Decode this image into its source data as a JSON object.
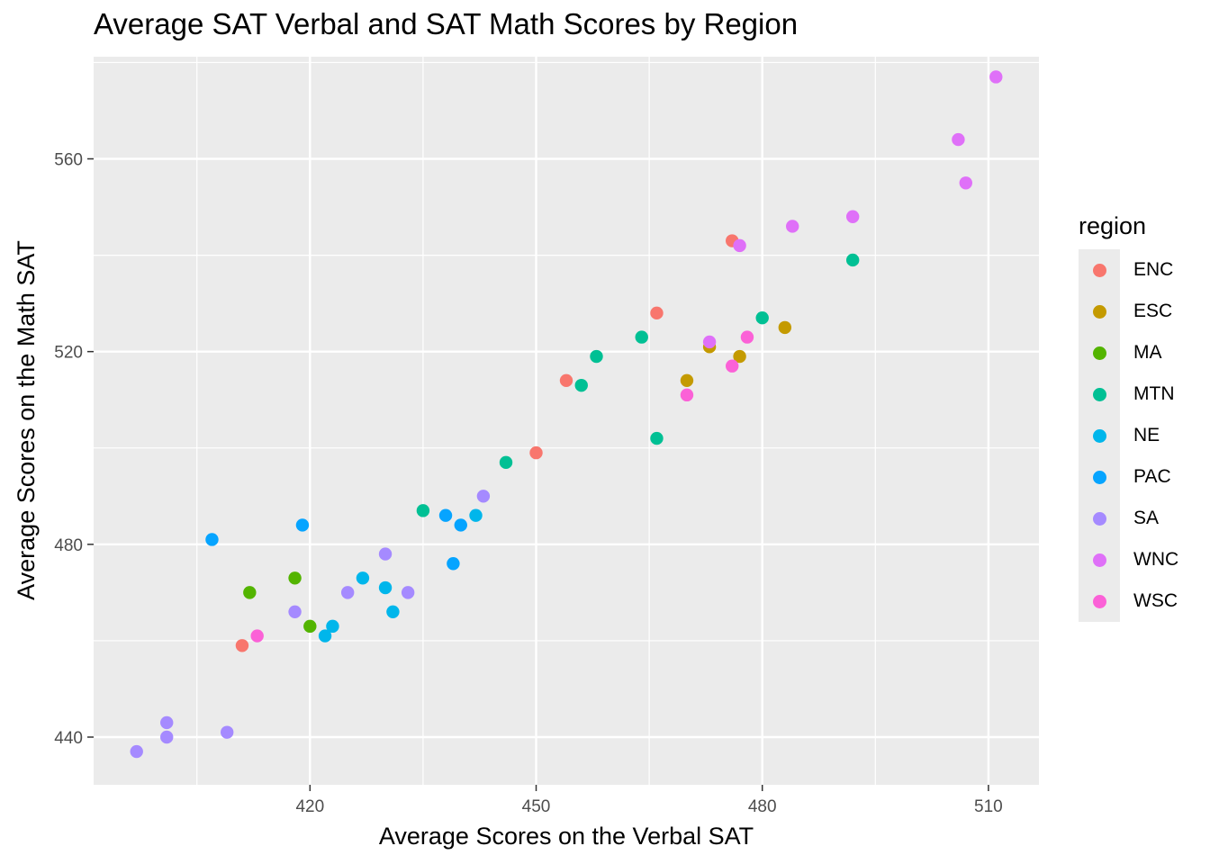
{
  "chart_data": {
    "type": "scatter",
    "title": "Average SAT Verbal and SAT Math Scores by Region",
    "xlabel": "Average Scores on the Verbal SAT",
    "ylabel": "Average Scores on the Math SAT",
    "xlim": [
      391.3,
      516.7
    ],
    "ylim": [
      430.1,
      581.2
    ],
    "xticks": [
      420,
      450,
      480,
      510
    ],
    "yticks": [
      440,
      480,
      520,
      560
    ],
    "grid": true,
    "legend": {
      "title": "region",
      "position": "right"
    },
    "series": [
      {
        "name": "ENC",
        "color": "#F8766D",
        "points": [
          [
            411,
            459
          ],
          [
            450,
            499
          ],
          [
            454,
            514
          ],
          [
            466,
            528
          ],
          [
            476,
            543
          ]
        ]
      },
      {
        "name": "ESC",
        "color": "#C49A00",
        "points": [
          [
            470,
            514
          ],
          [
            473,
            521
          ],
          [
            477,
            519
          ],
          [
            483,
            525
          ]
        ]
      },
      {
        "name": "MA",
        "color": "#53B400",
        "points": [
          [
            412,
            470
          ],
          [
            418,
            473
          ],
          [
            420,
            463
          ]
        ]
      },
      {
        "name": "MTN",
        "color": "#00C094",
        "points": [
          [
            435,
            487
          ],
          [
            446,
            497
          ],
          [
            456,
            513
          ],
          [
            458,
            519
          ],
          [
            464,
            523
          ],
          [
            466,
            502
          ],
          [
            480,
            527
          ],
          [
            492,
            539
          ]
        ]
      },
      {
        "name": "NE",
        "color": "#00B6EB",
        "points": [
          [
            422,
            461
          ],
          [
            423,
            463
          ],
          [
            427,
            473
          ],
          [
            430,
            471
          ],
          [
            431,
            466
          ],
          [
            442,
            486
          ]
        ]
      },
      {
        "name": "PAC",
        "color": "#06A4FF",
        "points": [
          [
            407,
            481
          ],
          [
            419,
            484
          ],
          [
            438,
            486
          ],
          [
            439,
            476
          ],
          [
            440,
            484
          ]
        ]
      },
      {
        "name": "SA",
        "color": "#A58AFF",
        "points": [
          [
            397,
            437
          ],
          [
            401,
            440
          ],
          [
            401,
            443
          ],
          [
            409,
            441
          ],
          [
            418,
            466
          ],
          [
            425,
            470
          ],
          [
            430,
            478
          ],
          [
            433,
            470
          ],
          [
            443,
            490
          ]
        ]
      },
      {
        "name": "WNC",
        "color": "#DF70F8",
        "points": [
          [
            473,
            522
          ],
          [
            477,
            542
          ],
          [
            484,
            546
          ],
          [
            492,
            548
          ],
          [
            506,
            564
          ],
          [
            507,
            555
          ],
          [
            511,
            577
          ]
        ]
      },
      {
        "name": "WSC",
        "color": "#FB61D7",
        "points": [
          [
            413,
            461
          ],
          [
            470,
            511
          ],
          [
            476,
            517
          ],
          [
            478,
            523
          ]
        ]
      }
    ]
  }
}
